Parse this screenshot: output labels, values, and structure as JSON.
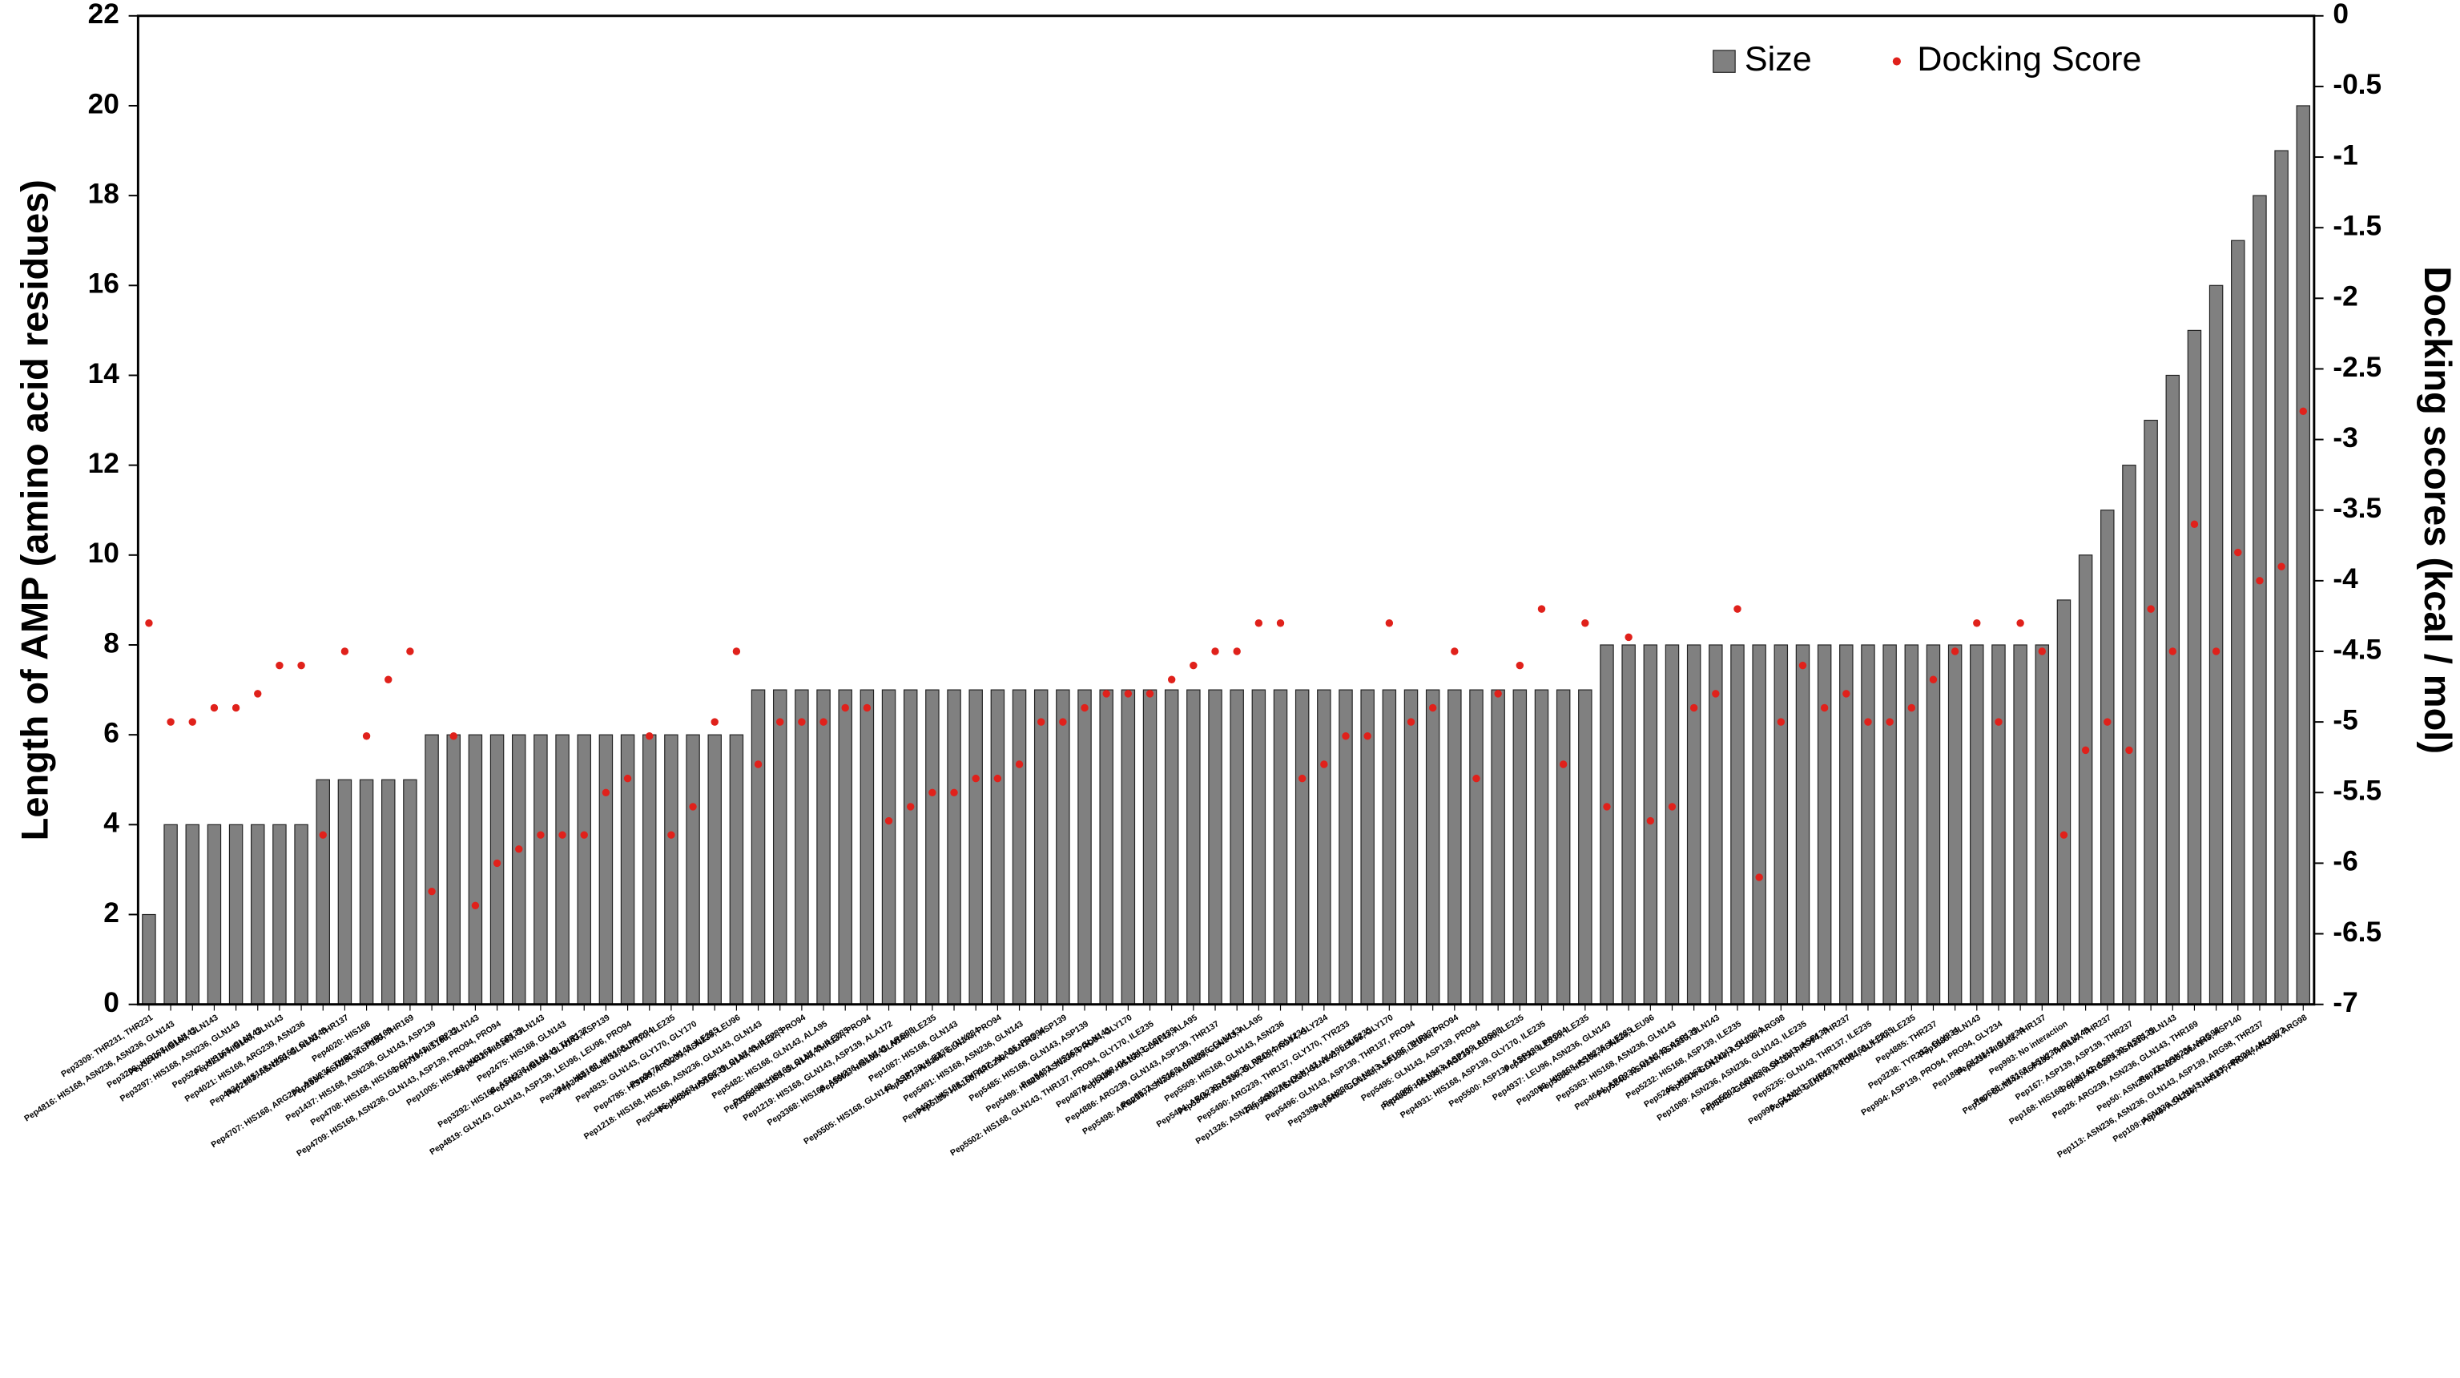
{
  "chart_data": {
    "type": "bar",
    "y_title": "Length of AMP (amino acid residues)",
    "y2_title": "Docking scores (kcal / mol)",
    "legend": "top-right",
    "ylim": [
      0,
      22
    ],
    "yticks": [
      0,
      2,
      4,
      6,
      8,
      10,
      12,
      14,
      16,
      18,
      20,
      22
    ],
    "y2lim": [
      -7,
      0
    ],
    "y2ticks": [
      -7,
      -6.5,
      -6,
      -5.5,
      -5,
      -4.5,
      -4,
      -3.5,
      -3,
      -2.5,
      -2,
      -1.5,
      -1,
      -0.5,
      0
    ],
    "categories": [
      "Pep3309: THR231, THR231",
      "Pep4816: HIS168, ASN236, ASN236, GLN143",
      "Pep3208: HIS168, GLN143",
      "Pep3240: HIS168, GLN143",
      "Pep3297: HIS168, ASN236, GLN143",
      "Pep5247: HIS168, GLN143",
      "Pep3219: HIS168, GLN143",
      "Pep4021: HIS168, ARG239, ASN236",
      "Pep4934: HIS168, HIS168, GLN143",
      "Pep2533: ASN236, GLN143, THR137",
      "Pep4020: HIS168",
      "Pep4707: HIS168, ARG239, ASN236, THR137, THR169",
      "Pep2534: ASN236, ASP139, THR169",
      "Pep1437: HIS168, ASN236, GLN143, ASP139",
      "Pep4708: HIS168, HIS168, GLN143, TYR233",
      "Pep710: HIS168, GLN143",
      "Pep4709: HIS168, ASN236, GLN143, ASP139, PRO94, PRO94",
      "Pep1005: HIS168, HIS168, ASP139",
      "Pep2442: HIS168, GLN143",
      "Pep2475: HIS168, GLN143",
      "Pep3292: HIS168, ASN236, GLN143, THR137",
      "Pep3461: HIS168, GLN143, ASP139",
      "Pep4819: GLN143, GLN143, ASP139, LEU96, LEU96, PRO94",
      "Pep2244: HIS168, HIS168, PRO94",
      "Pep3469: GLN143, GLY170, ILE235",
      "Pep4933: GLN143, GLY170, GLY170",
      "Pep3470: GLN143, ILE235",
      "Pep4785: HIS168, ARG239, ASN236, LEU96",
      "Pep1218: HIS168, HIS168, ASN236, GLN143, GLN143",
      "Pep5486: HIS168, ARG239, GLN143, ILE235",
      "Pep5484: HIS168, GLN143, THR137, PRO94",
      "Pep5482: HIS168, GLN143, ALA95",
      "Pep5488: HIS168, GLN143, ILE235",
      "Pep3366: HIS168, GLN143, THR137, PRO94",
      "Pep1219: HIS168, GLN143, ASP139, ALA172",
      "Pep3368: HIS168, ASN236, GLN143, ARG98",
      "Pep5501: HIS168, GLN143, ILE235",
      "Pep1087: HIS168, GLN143",
      "Pep5505: HIS168, GLN143, ASP139, ILE235, GLY234",
      "Pep5487: HIS168, GLN143, PRO94",
      "Pep5491: HIS168, ASN236, GLN143",
      "Pep5497: HIS168, THR137, ALA95, PRO94",
      "Pep5115: HIS168, ARG239, GLN143, ASP139",
      "Pep5485: HIS168, GLN143, ASP139",
      "Pep5483: HIS168, GLN143",
      "Pep5499: HIS168, ASN236, PRO94, GLY170",
      "Pep5502: HIS168, GLN143, THR137, PRO94, GLY170, ILE235",
      "Pep4874: HIS168, GLN143, ASP139",
      "Pep5489: HIS168, GLN143, ALA95",
      "Pep4886: ARG239, GLN143, ASP139, THR137",
      "Pep6532: HIS168, ASN236, GLN143",
      "Pep5498: ARG239, ASN236, ASN236, GLN143, ALA95",
      "Pep5509: HIS168, GLN143, ASN236",
      "Pep5494: ARG239, ASN236, PRO94, GLY234",
      "Pep3349: ARG239, GLN143, PRO94, GLY234",
      "Pep5490: ARG239, THR137, GLY170, TYR233",
      "Pep1326: ASN236, ASN236, GLN143, ALA95, ILE235",
      "Pep5481: ASN236, GLN143, LEU96, GLY170",
      "Pep5496: GLN143, ASP139, THR137, PRO94",
      "Pep3383: ASN236, GLN143, LEU96, THR137",
      "Pep5493: GLN143, ASP139, LEU96, PRO94",
      "Pep5495: GLN143, ASP139, PRO94",
      "Pep1086: GLN143, ASP139, ARG98",
      "Pep4583: HIS168, ARG239, LEU96, ILE235",
      "Pep4931: HIS168, ASP139, GLY170, ILE235",
      "Pep5500: ASP139, ASP139, PRO94",
      "Pep3350: ILE235, ILE235",
      "Pep4937: LEU96, ASN236, GLN143",
      "Pep3059: HIS168, ASN236, ILE235",
      "Pep5386: HIS168, ASN236, LEU96",
      "Pep5363: HIS168, ASN236, GLN143",
      "Pep4644: ARG239, GLN143, ASP139",
      "Pep5240: ASN236, ASN236, GLN143",
      "Pep5232: HIS168, ASP139, ILE235",
      "Pep5245: HIS168, GLN143, GLY234",
      "Pep5244: GLN143, ASP139, ARG98",
      "Pep1089: ASN236, ASN236, GLN143, ILE235",
      "Pep5302: ASN236, GLN143, ASP139",
      "Pep5243: GLN143, ASP139, PRO94, THR237",
      "Pep5235: GLN143, THR137, ILE235",
      "Pep996: GLN143, THR137, THR169, ILE235",
      "Pep5242: GLN143, PRO94, GLY170, ILE235",
      "Pep4885: THR237",
      "Pep3238: TYR233, GLY234",
      "Pep1888: GLN143",
      "Pep994: ASP139, PRO94, PRO94, GLY234",
      "Pep1889: GLN143, GLY234",
      "Pep3236: HIS168, THR137",
      "Pep993: No interaction",
      "Pep686: HIS168, ASN236, GLN143",
      "Pep187: GLN143, ASP139, THR137, THR237",
      "Pep167: ASP139, ASP139, THR237",
      "Pep168: HIS168, GLN143, ASP139, ASP139",
      "Pep88: ARG239, ASN236, GLN143",
      "Pep26: ARG239, ASN236, GLN143, THR169",
      "Pep72: ASN236, ARG98",
      "Pep50: ASN236, ASN236, GLN143, ASP140",
      "Pep113: ASN236, ASN236, GLN143, ASP139, ARG98, THR237",
      "Pep109: ASN236, GLN143, ILE235, PRO94, ALA172",
      "Pep49: ASN236, THR137, PRO94, ARG98, ARG98"
    ],
    "series": [
      {
        "name": "Size",
        "type": "bar",
        "color": "#808080",
        "values": [
          2,
          4,
          4,
          4,
          4,
          4,
          4,
          4,
          5,
          5,
          5,
          5,
          5,
          6,
          6,
          6,
          6,
          6,
          6,
          6,
          6,
          6,
          6,
          6,
          6,
          6,
          6,
          6,
          7,
          7,
          7,
          7,
          7,
          7,
          7,
          7,
          7,
          7,
          7,
          7,
          7,
          7,
          7,
          7,
          7,
          7,
          7,
          7,
          7,
          7,
          7,
          7,
          7,
          7,
          7,
          7,
          7,
          7,
          7,
          7,
          7,
          7,
          7,
          7,
          7,
          7,
          7,
          8,
          8,
          8,
          8,
          8,
          8,
          8,
          8,
          8,
          8,
          8,
          8,
          8,
          8,
          8,
          8,
          8,
          8,
          8,
          8,
          8,
          9,
          10,
          11,
          12,
          13,
          14,
          15,
          16,
          17,
          18,
          19,
          20
        ]
      },
      {
        "name": "Docking Score",
        "type": "scatter",
        "axis": "y2",
        "color": "#e0211b",
        "values": [
          -4.3,
          -5.0,
          -5.0,
          -4.9,
          -4.9,
          -4.8,
          -4.6,
          -4.6,
          -5.8,
          -4.5,
          -5.1,
          -4.7,
          -4.5,
          -6.2,
          -5.1,
          -6.3,
          -6.0,
          -5.9,
          -5.8,
          -5.8,
          -5.8,
          -5.5,
          -5.4,
          -5.1,
          -5.8,
          -5.6,
          -5.0,
          -4.5,
          -5.3,
          -5.0,
          -5.0,
          -5.0,
          -4.9,
          -4.9,
          -5.7,
          -5.6,
          -5.5,
          -5.5,
          -5.4,
          -5.4,
          -5.3,
          -5.0,
          -5.0,
          -4.9,
          -4.8,
          -4.8,
          -4.8,
          -4.7,
          -4.6,
          -4.5,
          -4.5,
          -4.3,
          -4.3,
          -5.4,
          -5.3,
          -5.1,
          -5.1,
          -4.3,
          -5.0,
          -4.9,
          -4.5,
          -5.4,
          -4.8,
          -4.6,
          -4.2,
          -5.3,
          -4.3,
          -5.6,
          -4.4,
          -5.7,
          -5.6,
          -4.9,
          -4.8,
          -4.2,
          -6.1,
          -5.0,
          -4.6,
          -4.9,
          -4.8,
          -5.0,
          -5.0,
          -4.9,
          -4.7,
          -4.5,
          -4.3,
          -5.0,
          -4.3,
          -4.5,
          -5.8,
          -5.2,
          -5.0,
          -5.2,
          -4.2,
          -4.5,
          -3.6,
          -4.5,
          -3.8,
          -4.0,
          -3.9,
          -2.8
        ]
      }
    ]
  }
}
